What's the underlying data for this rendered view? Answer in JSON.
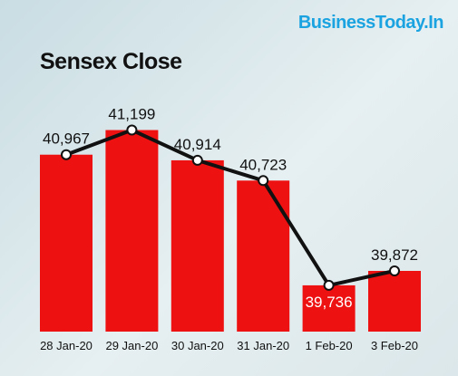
{
  "brand": {
    "text": "BusinessToday.In",
    "color": "#1aa3e0"
  },
  "chart_data": {
    "type": "bar",
    "title": "Sensex Close",
    "categories": [
      "28 Jan-20",
      "29 Jan-20",
      "30 Jan-20",
      "31 Jan-20",
      "1 Feb-20",
      "3 Feb-20"
    ],
    "values": [
      40967,
      41199,
      40914,
      40723,
      39736,
      39872
    ],
    "value_labels": [
      "40,967",
      "41,199",
      "40,914",
      "40,723",
      "39,736",
      "39,872"
    ],
    "overlay": "line",
    "ylim": [
      39300,
      41400
    ],
    "xlabel": "",
    "ylabel": "",
    "grid": false,
    "colors": {
      "bar": "#ee1111",
      "line": "#111111",
      "marker_fill": "#ffffff",
      "inside_label": "#ffffff"
    }
  }
}
